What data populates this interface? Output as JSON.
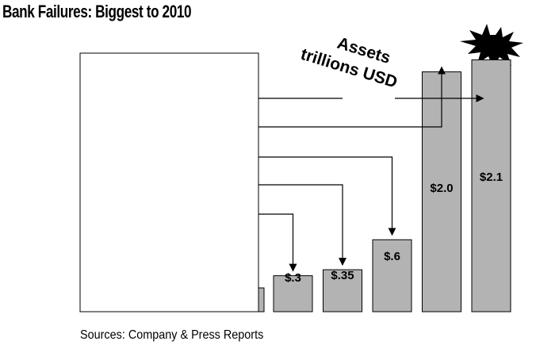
{
  "title": "Bank Failures: Biggest to 2010",
  "source": "Sources: Company & Press Reports",
  "chart_data": {
    "type": "bar",
    "annotation_lines": [
      "Assets",
      "trillions USD"
    ],
    "categories": [
      "",
      "",
      "",
      "",
      ""
    ],
    "values": [
      0.3,
      0.35,
      0.6,
      2.0,
      2.1
    ],
    "data_labels": [
      "$.3",
      "$.35",
      "$.6",
      "$2.0",
      "$2.1"
    ],
    "ylabel": "",
    "xlabel": "",
    "ylim": [
      0,
      2.5
    ],
    "grid": false,
    "bar_color": "#b3b3b3",
    "burst_color": "#000000"
  }
}
